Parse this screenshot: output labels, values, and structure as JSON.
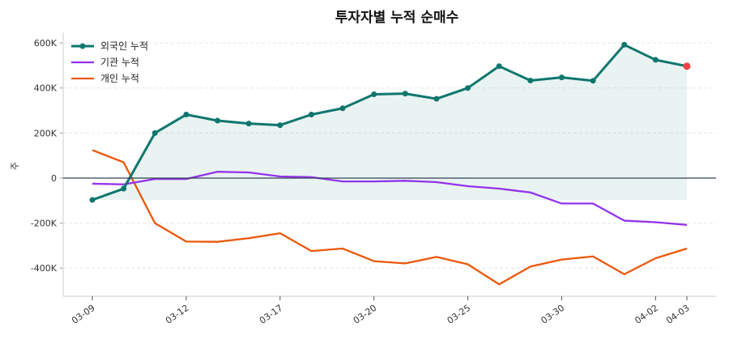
{
  "chart_data": {
    "type": "line",
    "title": "투자자별 누적 순매수",
    "xlabel": "",
    "ylabel": "주",
    "x": [
      "03-09",
      "03-10",
      "03-11",
      "03-12",
      "03-13",
      "03-16",
      "03-17",
      "03-18",
      "03-19",
      "03-20",
      "03-23",
      "03-24",
      "03-25",
      "03-26",
      "03-27",
      "03-30",
      "03-31",
      "04-01",
      "04-02",
      "04-03"
    ],
    "xticks": [
      "03-09",
      "03-12",
      "03-17",
      "03-20",
      "03-25",
      "03-30",
      "04-02",
      "04-03"
    ],
    "yticks": [
      -400000,
      -200000,
      0,
      200000,
      400000,
      600000
    ],
    "ytick_labels": [
      "-400K",
      "-200K",
      "0",
      "200K",
      "400K",
      "600K"
    ],
    "ylim": [
      -525000,
      647000
    ],
    "grid": "horizontal dashed",
    "legend": "top-left",
    "series": [
      {
        "name": "외국인 누적",
        "color": "#0f766e",
        "markers": true,
        "fill": true,
        "values": [
          -97000,
          -47000,
          200000,
          282000,
          255000,
          242000,
          235000,
          282000,
          310000,
          372000,
          375000,
          352000,
          400000,
          497000,
          433000,
          447000,
          432000,
          592000,
          525000,
          497000
        ],
        "last_point_color": "#ef4444"
      },
      {
        "name": "기관 누적",
        "color": "#9333ea",
        "values": [
          -25000,
          -28000,
          -4000,
          -4000,
          28000,
          25000,
          7000,
          4000,
          -15000,
          -15000,
          -12000,
          -18000,
          -36000,
          -47000,
          -64000,
          -113000,
          -113000,
          -189000,
          -196000,
          -208000
        ]
      },
      {
        "name": "개인 누적",
        "color": "#ea580c",
        "values": [
          124000,
          70000,
          -200000,
          -282000,
          -283000,
          -267000,
          -245000,
          -324000,
          -313000,
          -369000,
          -379000,
          -350000,
          -383000,
          -472000,
          -393000,
          -362000,
          -348000,
          -427000,
          -356000,
          -313000
        ]
      }
    ],
    "zero_line_color": "#334155"
  }
}
